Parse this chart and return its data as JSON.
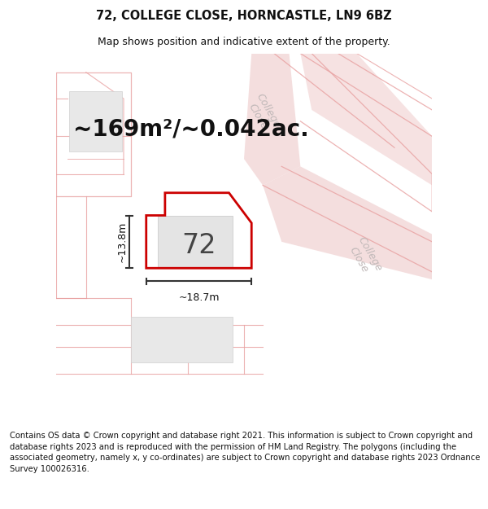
{
  "title_line1": "72, COLLEGE CLOSE, HORNCASTLE, LN9 6BZ",
  "title_line2": "Map shows position and indicative extent of the property.",
  "area_text": "~169m²/~0.042ac.",
  "width_label": "~18.7m",
  "height_label": "~13.8m",
  "number_label": "72",
  "footer_text": "Contains OS data © Crown copyright and database right 2021. This information is subject to Crown copyright and database rights 2023 and is reproduced with the permission of HM Land Registry. The polygons (including the associated geometry, namely x, y co-ordinates) are subject to Crown copyright and database rights 2023 Ordnance Survey 100026316.",
  "bg_color": "#ffffff",
  "map_bg": "#f8f8f8",
  "plot_edge_color": "#cc0000",
  "road_fill": "#f0d0d0",
  "road_line": "#e8a0a0",
  "road_label_color": "#c0b8b8",
  "building_fill": "#e8e8e8",
  "building_edge": "#d0d0d0",
  "dim_color": "#333333",
  "title_fontsize": 10.5,
  "subtitle_fontsize": 9,
  "area_fontsize": 20,
  "number_fontsize": 24,
  "dim_fontsize": 9,
  "footer_fontsize": 7.2,
  "road_label_fontsize": 9
}
